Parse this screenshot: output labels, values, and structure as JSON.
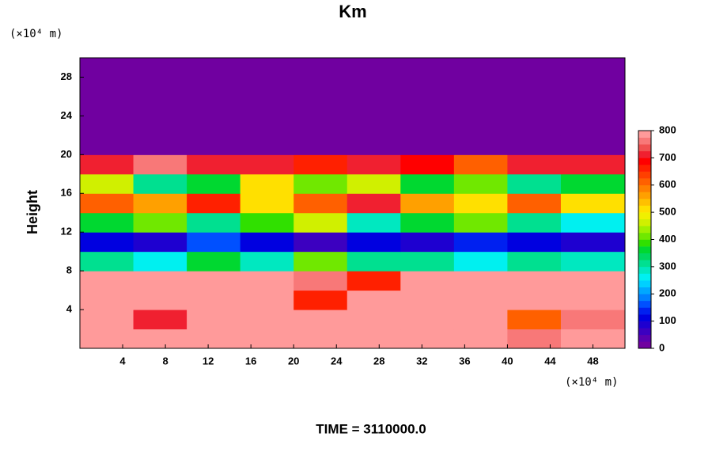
{
  "chart_data": {
    "type": "contour",
    "title": "Km",
    "y_unit_label": "(×10⁴ m)",
    "x_unit_label": "(×10⁴ m)",
    "ylabel": "Height",
    "footer": "TIME = 3110000.0",
    "xlim": [
      0,
      51
    ],
    "ylim": [
      0,
      30
    ],
    "xticks": [
      4,
      8,
      12,
      16,
      20,
      24,
      28,
      32,
      36,
      40,
      44,
      48
    ],
    "yticks": [
      4,
      8,
      12,
      16,
      20,
      24,
      28
    ],
    "x": [
      0,
      5,
      10,
      15,
      20,
      25,
      30,
      35,
      40,
      45,
      51
    ],
    "y": [
      0,
      2,
      4,
      6,
      8,
      10,
      12,
      14,
      16,
      18,
      20,
      22,
      24,
      26,
      28,
      30
    ],
    "z": [
      [
        800,
        800,
        800,
        800,
        800,
        800,
        800,
        800,
        750,
        780
      ],
      [
        800,
        720,
        800,
        800,
        800,
        800,
        800,
        800,
        600,
        750
      ],
      [
        800,
        800,
        800,
        780,
        650,
        800,
        800,
        800,
        800,
        800
      ],
      [
        790,
        800,
        800,
        800,
        760,
        650,
        800,
        780,
        800,
        800
      ],
      [
        300,
        250,
        350,
        280,
        420,
        300,
        300,
        250,
        320,
        280
      ],
      [
        120,
        80,
        150,
        100,
        60,
        120,
        90,
        140,
        100,
        80
      ],
      [
        350,
        420,
        300,
        380,
        450,
        280,
        350,
        400,
        300,
        250
      ],
      [
        600,
        550,
        650,
        500,
        600,
        700,
        550,
        520,
        600,
        500
      ],
      [
        450,
        300,
        350,
        500,
        400,
        450,
        350,
        400,
        300,
        350
      ],
      [
        720,
        750,
        700,
        700,
        650,
        700,
        680,
        620,
        700,
        700
      ],
      [
        0,
        0,
        0,
        0,
        0,
        0,
        0,
        0,
        0,
        0
      ],
      [
        0,
        0,
        0,
        0,
        0,
        0,
        0,
        0,
        0,
        0
      ],
      [
        0,
        0,
        0,
        0,
        0,
        0,
        0,
        0,
        0,
        0
      ],
      [
        0,
        0,
        0,
        0,
        0,
        0,
        0,
        0,
        0,
        0
      ],
      [
        0,
        0,
        0,
        0,
        0,
        0,
        0,
        0,
        0,
        0
      ]
    ],
    "clim": [
      0,
      800
    ],
    "colorbar_ticks": [
      0,
      100,
      200,
      300,
      400,
      500,
      600,
      700,
      800
    ],
    "colors": [
      "#7000a0",
      "#5a00b0",
      "#3c00c0",
      "#1e00d0",
      "#0000e0",
      "#0020f0",
      "#0050ff",
      "#0080ff",
      "#00a8ff",
      "#00d0ff",
      "#00f0f0",
      "#00e8c0",
      "#00e090",
      "#00d860",
      "#00d830",
      "#30e000",
      "#70e800",
      "#a0f000",
      "#d0f000",
      "#f0f000",
      "#ffe000",
      "#ffc000",
      "#ffa000",
      "#ff8000",
      "#ff6000",
      "#ff4000",
      "#ff2000",
      "#ff0000",
      "#f02030",
      "#f05050",
      "#f87878",
      "#ff9a9a"
    ]
  }
}
